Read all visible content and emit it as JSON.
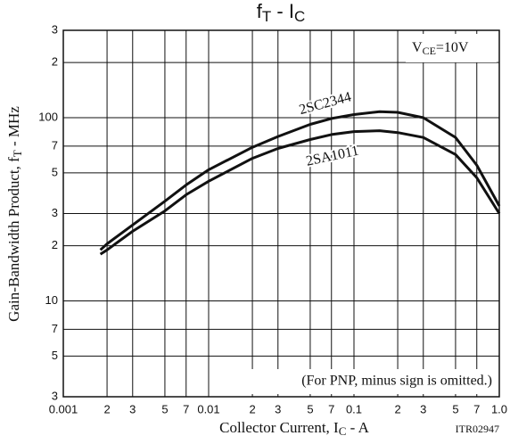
{
  "chart_data": {
    "type": "line",
    "title": [
      "f",
      "T",
      " - ",
      "I",
      "C"
    ],
    "x_label": [
      "Collector Current, I",
      "C",
      " - A"
    ],
    "y_label": [
      "Gain-Bandwidth Product, f",
      "T",
      " - MHz"
    ],
    "condition": [
      "V",
      "CE",
      "=10V"
    ],
    "note": "(For PNP, minus sign is omitted.)",
    "code": "ITR02947",
    "xscale": "log",
    "yscale": "log",
    "grid": true,
    "xlim": [
      0.001,
      1
    ],
    "ylim": [
      3,
      300
    ],
    "xticks": [
      0.001,
      {
        "value": 0.002,
        "label": "2"
      },
      {
        "value": 0.003,
        "label": "3"
      },
      {
        "value": 0.005,
        "label": "5"
      },
      {
        "value": 0.007,
        "label": "7"
      },
      0.01,
      {
        "value": 0.02,
        "label": "2"
      },
      {
        "value": 0.03,
        "label": "3"
      },
      {
        "value": 0.05,
        "label": "5"
      },
      {
        "value": 0.07,
        "label": "7"
      },
      0.1,
      {
        "value": 0.2,
        "label": "2"
      },
      {
        "value": 0.3,
        "label": "3"
      },
      {
        "value": 0.5,
        "label": "5"
      },
      {
        "value": 0.7,
        "label": "7"
      },
      {
        "value": 1,
        "label": "1.0"
      }
    ],
    "yticks": [
      3,
      5,
      7,
      10,
      {
        "value": 20,
        "label": "2"
      },
      {
        "value": 30,
        "label": "3"
      },
      {
        "value": 50,
        "label": "5"
      },
      {
        "value": 70,
        "label": "7"
      },
      100,
      {
        "value": 200,
        "label": "2"
      },
      {
        "value": 300,
        "label": "3"
      }
    ],
    "x": [
      0.0018,
      0.002,
      0.003,
      0.005,
      0.007,
      0.01,
      0.02,
      0.03,
      0.05,
      0.07,
      0.1,
      0.15,
      0.2,
      0.3,
      0.5,
      0.7,
      1
    ],
    "series": [
      {
        "name": "2SC2344",
        "color": "#111111",
        "values": [
          19,
          20.5,
          26,
          35,
          43,
          52,
          69,
          79,
          92,
          99,
          104,
          108,
          107,
          100,
          78,
          55,
          33
        ]
      },
      {
        "name": "2SA1011",
        "color": "#111111",
        "values": [
          18,
          19,
          24,
          31,
          38,
          45,
          60,
          68,
          76,
          81,
          84,
          85,
          83,
          78,
          63,
          47,
          30
        ]
      }
    ]
  }
}
